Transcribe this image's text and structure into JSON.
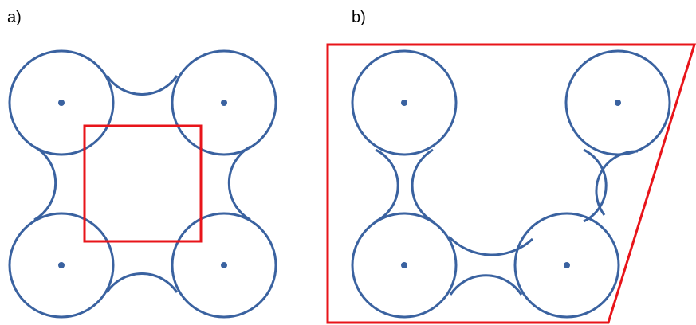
{
  "colors": {
    "circle": "#3a62a0",
    "box": "#e8141a",
    "label": "#000000"
  },
  "panels": [
    {
      "label": "a)",
      "shape": "square",
      "circle_count": 4,
      "fillet_count": 4
    },
    {
      "label": "b)",
      "shape": "trapezoid",
      "circle_count": 4,
      "fillet_count": 4
    }
  ]
}
